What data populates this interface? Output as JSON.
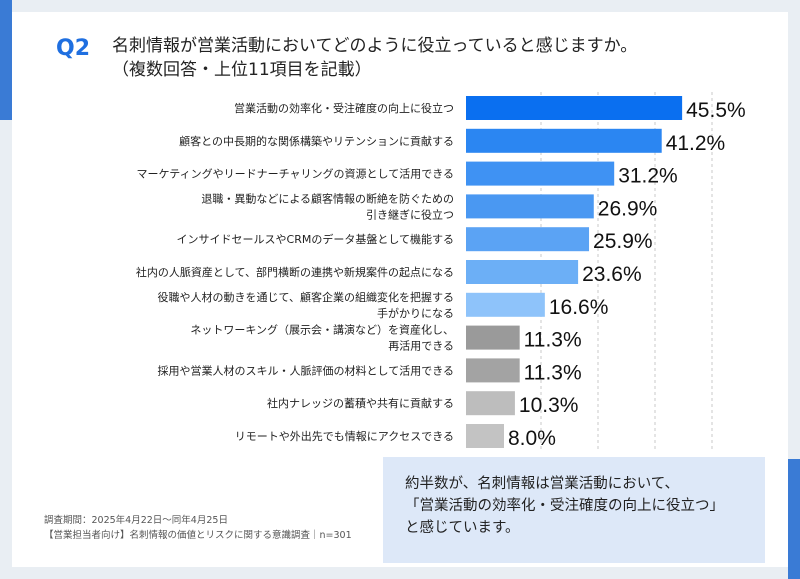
{
  "header": {
    "question_label": "Q2",
    "title": "名刺情報が営業活動においてどのように役立っていると感じますか。",
    "subtitle": "（複数回答・上位11項目を記載）"
  },
  "chart_data": {
    "type": "bar",
    "orientation": "horizontal",
    "title": "名刺情報が営業活動においてどのように役立っていると感じますか。",
    "subtitle": "（複数回答・上位11項目を記載）",
    "unit": "%",
    "categories": [
      [
        "営業活動の効率化・受注確度の向上に役立つ"
      ],
      [
        "顧客との中長期的な関係構築やリテンションに貢献する"
      ],
      [
        "マーケティングやリードナーチャリングの資源として活用できる"
      ],
      [
        "退職・異動などによる顧客情報の断絶を防ぐための",
        "引き継ぎに役立つ"
      ],
      [
        "インサイドセールスやCRMのデータ基盤として機能する"
      ],
      [
        "社内の人脈資産として、部門横断の連携や新規案件の起点になる"
      ],
      [
        "役職や人材の動きを通じて、顧客企業の組織変化を把握する",
        "手がかりになる"
      ],
      [
        "ネットワーキング（展示会・講演など）を資産化し、",
        "再活用できる"
      ],
      [
        "採用や営業人材のスキル・人脈評価の材料として活用できる"
      ],
      [
        "社内ナレッジの蓄積や共有に貢献する"
      ],
      [
        "リモートや外出先でも情報にアクセスできる"
      ]
    ],
    "values": [
      45.5,
      41.2,
      31.2,
      26.9,
      25.9,
      23.6,
      16.6,
      11.3,
      11.3,
      10.3,
      8.0
    ],
    "value_labels": [
      "45.5%",
      "41.2%",
      "31.2%",
      "26.9%",
      "25.9%",
      "23.6%",
      "16.6%",
      "11.3%",
      "11.3%",
      "10.3%",
      "8.0%"
    ],
    "colors": [
      "#0a6ff0",
      "#2b86f2",
      "#3f92f3",
      "#4a98f2",
      "#5ba3f4",
      "#6caff6",
      "#8ec3fa",
      "#9a9a9a",
      "#a3a3a3",
      "#bdbdbd",
      "#c3c3c3"
    ],
    "xlim": [
      0,
      100
    ],
    "grid": true
  },
  "callout": {
    "lines": [
      "約半数が、名刺情報は営業活動において、",
      "「営業活動の効率化・受注確度の向上に役立つ」",
      "と感じています。"
    ]
  },
  "footnote": {
    "lines": [
      "調査期間：2025年4月22日〜同年4月25日",
      "【営業担当者向け】名刺情報の価値とリスクに関する意識調査｜n=301"
    ]
  },
  "colors": {
    "accent": "#3a7bd5",
    "question_label": "#1f6fe0",
    "callout_bg": "#dde8f8"
  }
}
